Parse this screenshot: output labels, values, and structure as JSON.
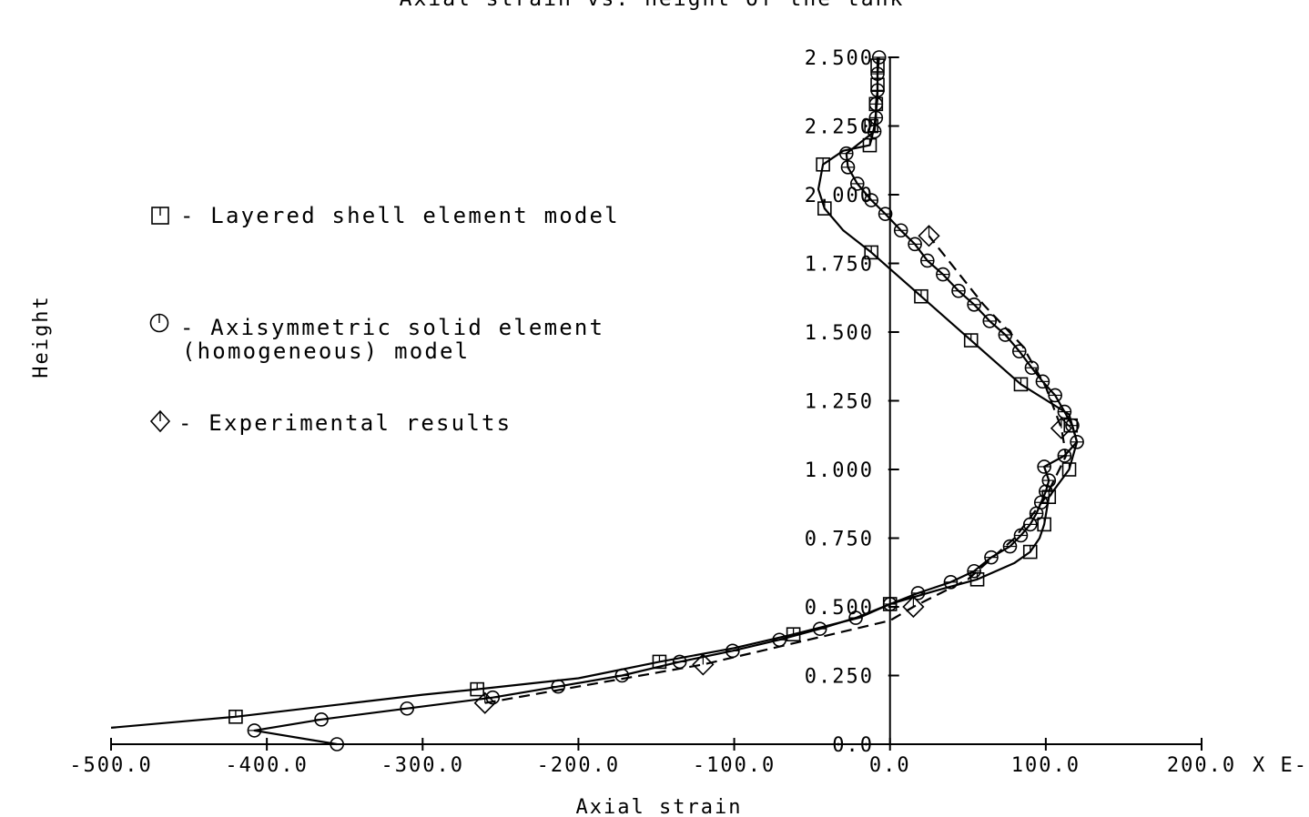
{
  "chart_data": {
    "type": "line",
    "title": "Axial strain vs. height of the tank",
    "xlabel": "Axial strain",
    "ylabel": "Height",
    "x_unit_suffix": "X E-",
    "xlim": [
      -500,
      200
    ],
    "ylim": [
      0,
      2.5
    ],
    "x_ticks": [
      -500,
      -400,
      -300,
      -200,
      -100,
      0,
      100,
      200
    ],
    "x_tick_labels": [
      "-500.0",
      "-400.0",
      "-300.0",
      "-200.0",
      "-100.0",
      "0.0",
      "100.0",
      "200.0"
    ],
    "y_ticks": [
      0,
      0.25,
      0.5,
      0.75,
      1.0,
      1.25,
      1.5,
      1.75,
      2.0,
      2.25,
      2.5
    ],
    "y_tick_labels": [
      "0.0",
      "0.250",
      "0.500",
      "0.750",
      "1.000",
      "1.250",
      "1.500",
      "1.750",
      "2.000",
      "2.250",
      "2.500"
    ],
    "grid": false,
    "legend_position": "left",
    "series": [
      {
        "name": "- Layered shell element model",
        "marker": "square",
        "line": "solid",
        "points": [
          [
            -500,
            0.06
          ],
          [
            -450,
            0.085
          ],
          [
            -420,
            0.1
          ],
          [
            -360,
            0.14
          ],
          [
            -300,
            0.18
          ],
          [
            -265,
            0.2
          ],
          [
            -200,
            0.24
          ],
          [
            -148,
            0.3
          ],
          [
            -100,
            0.35
          ],
          [
            -62,
            0.4
          ],
          [
            -20,
            0.46
          ],
          [
            0,
            0.51
          ],
          [
            30,
            0.56
          ],
          [
            56,
            0.6
          ],
          [
            80,
            0.66
          ],
          [
            90,
            0.7
          ],
          [
            96,
            0.75
          ],
          [
            99,
            0.8
          ],
          [
            102,
            0.9
          ],
          [
            115,
            1.0
          ],
          [
            120,
            1.1
          ],
          [
            115,
            1.2
          ],
          [
            84,
            1.31
          ],
          [
            52,
            1.47
          ],
          [
            20,
            1.63
          ],
          [
            2,
            1.72
          ],
          [
            -12,
            1.79
          ],
          [
            -30,
            1.87
          ],
          [
            -42,
            1.95
          ],
          [
            -46,
            2.02
          ],
          [
            -43,
            2.11
          ],
          [
            -30,
            2.16
          ],
          [
            -13,
            2.18
          ],
          [
            -12,
            2.2
          ],
          [
            -10,
            2.25
          ],
          [
            -9,
            2.3
          ],
          [
            -8,
            2.35
          ],
          [
            -8,
            2.4
          ],
          [
            -8,
            2.45
          ],
          [
            -8,
            2.5
          ]
        ],
        "marker_points": [
          [
            -420,
            0.1
          ],
          [
            -265,
            0.2
          ],
          [
            -148,
            0.3
          ],
          [
            -62,
            0.4
          ],
          [
            0,
            0.51
          ],
          [
            56,
            0.6
          ],
          [
            99,
            0.8
          ],
          [
            90,
            0.7
          ],
          [
            102,
            0.9
          ],
          [
            115,
            1.0
          ],
          [
            116,
            1.16
          ],
          [
            84,
            1.31
          ],
          [
            52,
            1.47
          ],
          [
            20,
            1.63
          ],
          [
            -12,
            1.79
          ],
          [
            -42,
            1.95
          ],
          [
            -43,
            2.11
          ],
          [
            -13,
            2.18
          ],
          [
            -12,
            2.25
          ],
          [
            -9,
            2.33
          ],
          [
            -8,
            2.4
          ],
          [
            -8,
            2.47
          ]
        ]
      },
      {
        "name": "- Axisymmetric solid element (homogeneous) model",
        "marker": "circle",
        "line": "solid",
        "points": [
          [
            -355,
            0.0
          ],
          [
            -408,
            0.05
          ],
          [
            -365,
            0.09
          ],
          [
            -310,
            0.13
          ],
          [
            -255,
            0.17
          ],
          [
            -213,
            0.21
          ],
          [
            -172,
            0.25
          ],
          [
            -135,
            0.3
          ],
          [
            -101,
            0.34
          ],
          [
            -71,
            0.38
          ],
          [
            -45,
            0.42
          ],
          [
            -22,
            0.46
          ],
          [
            0,
            0.51
          ],
          [
            18,
            0.55
          ],
          [
            39,
            0.59
          ],
          [
            54,
            0.63
          ],
          [
            65,
            0.68
          ],
          [
            77,
            0.72
          ],
          [
            84,
            0.76
          ],
          [
            90,
            0.8
          ],
          [
            94,
            0.84
          ],
          [
            97,
            0.88
          ],
          [
            100,
            0.92
          ],
          [
            102,
            0.96
          ],
          [
            99,
            1.01
          ],
          [
            112,
            1.05
          ],
          [
            120,
            1.1
          ],
          [
            117,
            1.16
          ],
          [
            112,
            1.21
          ],
          [
            106,
            1.27
          ],
          [
            98,
            1.32
          ],
          [
            91,
            1.37
          ],
          [
            83,
            1.43
          ],
          [
            74,
            1.49
          ],
          [
            64,
            1.54
          ],
          [
            54,
            1.6
          ],
          [
            44,
            1.65
          ],
          [
            34,
            1.71
          ],
          [
            24,
            1.76
          ],
          [
            16,
            1.82
          ],
          [
            7,
            1.87
          ],
          [
            -3,
            1.93
          ],
          [
            -12,
            1.98
          ],
          [
            -21,
            2.04
          ],
          [
            -27,
            2.1
          ],
          [
            -28,
            2.15
          ],
          [
            -10,
            2.23
          ],
          [
            -9,
            2.28
          ],
          [
            -9,
            2.33
          ],
          [
            -8,
            2.38
          ],
          [
            -8,
            2.44
          ],
          [
            -7,
            2.5
          ]
        ]
      },
      {
        "name": "- Experimental results",
        "marker": "diamond",
        "line": "dashed",
        "points": [
          [
            -260,
            0.15
          ],
          [
            -200,
            0.21
          ],
          [
            -120,
            0.29
          ],
          [
            -60,
            0.37
          ],
          [
            0,
            0.45
          ],
          [
            15,
            0.5
          ],
          [
            50,
            0.6
          ],
          [
            80,
            0.75
          ],
          [
            100,
            0.9
          ],
          [
            113,
            1.05
          ],
          [
            110,
            1.15
          ],
          [
            100,
            1.3
          ],
          [
            85,
            1.45
          ],
          [
            60,
            1.6
          ],
          [
            25,
            1.85
          ]
        ],
        "marker_points": [
          [
            -260,
            0.15
          ],
          [
            -120,
            0.29
          ],
          [
            15,
            0.5
          ],
          [
            110,
            1.15
          ],
          [
            25,
            1.85
          ]
        ]
      }
    ]
  }
}
